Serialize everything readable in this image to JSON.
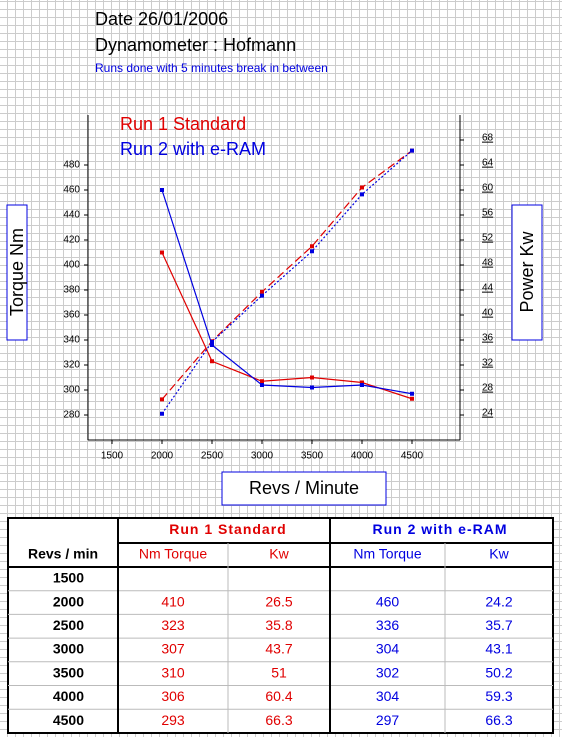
{
  "chart_data": {
    "type": "line",
    "title": "Date 26/01/2006",
    "subtitle": "Dynamometer : Hofmann",
    "note": "Runs done with 5 minutes break in between",
    "x_label": "Revs / Minute",
    "y_label": "Torque Nm",
    "y2_label": "Power Kw",
    "x": [
      1500,
      2000,
      2500,
      3000,
      3500,
      4000,
      4500
    ],
    "xlim": [
      1260,
      4980
    ],
    "xticks": [
      1500,
      2000,
      2500,
      3000,
      3500,
      4000,
      4500
    ],
    "ylim": [
      260,
      520
    ],
    "yticks": [
      280,
      300,
      320,
      340,
      360,
      380,
      400,
      420,
      440,
      460,
      480
    ],
    "y2lim": [
      20,
      72
    ],
    "y2ticks": [
      24,
      28,
      32,
      36,
      40,
      44,
      48,
      52,
      56,
      60,
      64,
      68
    ],
    "series": [
      {
        "name": "Run 1 Standard",
        "color": "#e00000",
        "y2_dash": "8 4",
        "values": [
          null,
          410,
          323,
          307,
          310,
          306,
          293
        ],
        "y2_values": [
          null,
          26.5,
          35.8,
          43.7,
          51,
          60.4,
          66.3
        ]
      },
      {
        "name": "Run 2 with e-RAM",
        "color": "#0000e0",
        "y2_dash": "2 2",
        "values": [
          null,
          460,
          336,
          304,
          302,
          304,
          297
        ],
        "y2_values": [
          null,
          24.2,
          35.7,
          43.1,
          50.2,
          59.3,
          66.3
        ]
      }
    ]
  },
  "table": {
    "header": "Revs / min",
    "columns": [
      "Nm Torque",
      "Kw",
      "Nm Torque",
      "Kw"
    ]
  }
}
